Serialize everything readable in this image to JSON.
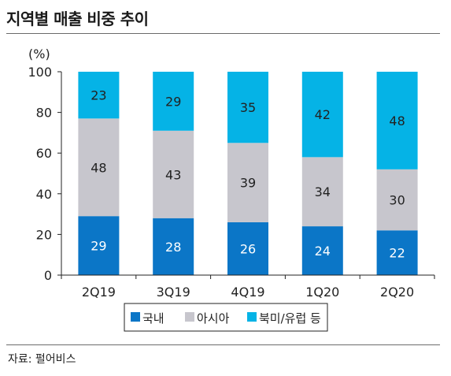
{
  "header": {
    "title": "지역별 매출 비중 추이"
  },
  "footer": {
    "source": "자료: 펄어비스"
  },
  "chart_data": {
    "type": "bar",
    "stacked": true,
    "categories": [
      "2Q19",
      "3Q19",
      "4Q19",
      "1Q20",
      "2Q20"
    ],
    "series": [
      {
        "name": "국내",
        "values": [
          29,
          28,
          26,
          24,
          22
        ],
        "color": "#0b76c7",
        "label_color": "#ffffff"
      },
      {
        "name": "아시아",
        "values": [
          48,
          43,
          39,
          34,
          30
        ],
        "color": "#c7c6cd",
        "label_color": "#222222"
      },
      {
        "name": "북미/유럽 등",
        "values": [
          23,
          29,
          35,
          42,
          48
        ],
        "color": "#05b3e6",
        "label_color": "#222222"
      }
    ],
    "ylabel": "(%)",
    "ylim": [
      0,
      100
    ],
    "yticks": [
      0,
      20,
      40,
      60,
      80,
      100
    ],
    "grid": false,
    "legend": "bottom"
  }
}
